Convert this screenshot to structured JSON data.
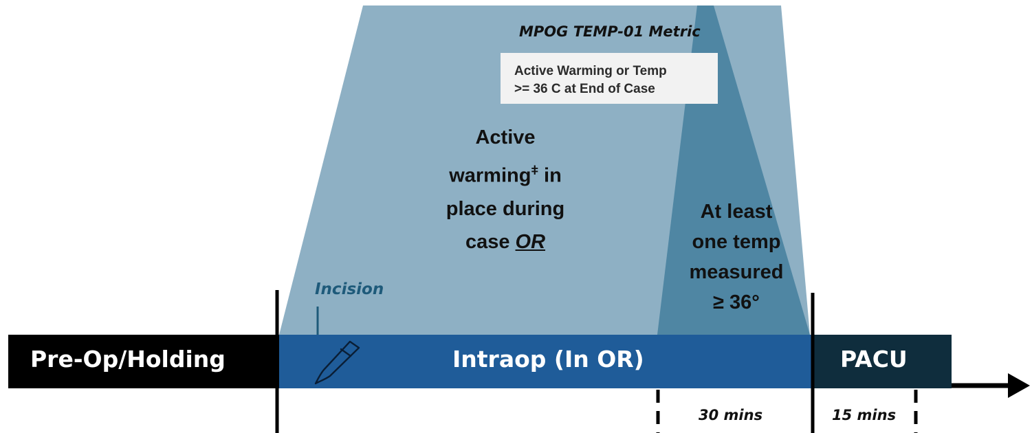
{
  "metric": {
    "title": "MPOG TEMP-01 Metric",
    "box_line_1": "Active Warming or Temp",
    "box_line_2": ">= 36 C at End of Case"
  },
  "criteria": {
    "active_warming_line_1": "Active",
    "active_warming_line_2": "warming",
    "active_warming_footnote": "ǂ",
    "active_warming_line_2_suffix": " in",
    "active_warming_line_3": "place during",
    "active_warming_line_4": "case ",
    "active_warming_connector": "OR",
    "temp_line_1": "At least",
    "temp_line_2": "one temp",
    "temp_line_3": "measured",
    "temp_line_4": "≥ 36°"
  },
  "timeline": {
    "incision_label": "Incision",
    "phases": [
      {
        "label": "Pre-Op/Holding"
      },
      {
        "label": "Intraop (In OR)"
      },
      {
        "label": "PACU"
      }
    ],
    "durations": [
      "30 mins",
      "15 mins"
    ]
  },
  "colors": {
    "active_warming_area": "#8eb0c4",
    "temp_area": "#4f86a3",
    "intraop_bar": "#1f5c99",
    "preop_bar": "#000000",
    "pacu_bar": "#0f2d3d",
    "incision_text": "#1e5a7a"
  }
}
